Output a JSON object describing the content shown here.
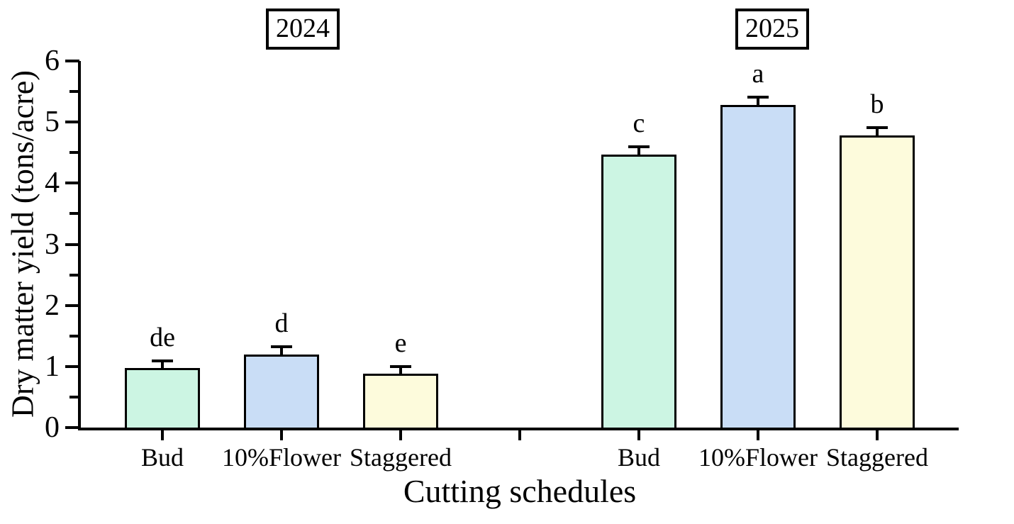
{
  "chart_data": {
    "type": "bar",
    "title": "",
    "xlabel": "Cutting schedules",
    "ylabel": "Dry matter yield (tons/acre)",
    "ylim": [
      0,
      6
    ],
    "y_major_ticks": [
      0,
      1,
      2,
      3,
      4,
      5,
      6
    ],
    "y_minor_tick_step": 0.5,
    "grid": false,
    "legend_position": "none",
    "background_color": "#ffffff",
    "bar_outline_color": "#000000",
    "axis_color": "#000000",
    "gap_slot_between_groups": true,
    "groups": [
      {
        "label": "2024",
        "categories": [
          "Bud",
          "10%Flower",
          "Staggered"
        ],
        "values": [
          0.97,
          1.19,
          0.88
        ],
        "errors_plus": [
          0.12,
          0.13,
          0.12
        ],
        "sig_letters": [
          "de",
          "d",
          "e"
        ],
        "bar_fill_colors": [
          "#ccf5e3",
          "#c9ddf6",
          "#fdfbdc"
        ]
      },
      {
        "label": "2025",
        "categories": [
          "Bud",
          "10%Flower",
          "Staggered"
        ],
        "values": [
          4.47,
          5.28,
          4.78
        ],
        "errors_plus": [
          0.13,
          0.13,
          0.13
        ],
        "sig_letters": [
          "c",
          "a",
          "b"
        ],
        "bar_fill_colors": [
          "#ccf5e3",
          "#c9ddf6",
          "#fdfbdc"
        ]
      }
    ]
  }
}
